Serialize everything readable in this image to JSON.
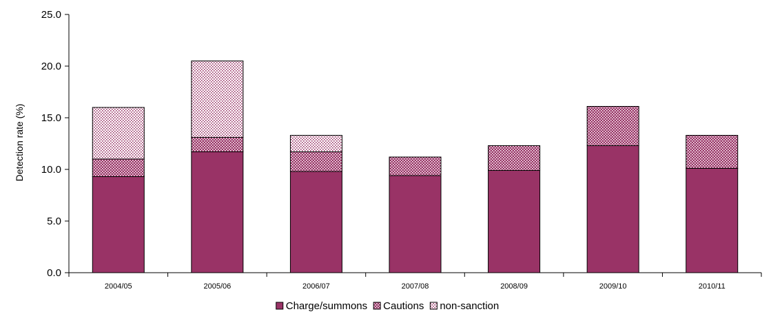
{
  "chart_data": {
    "type": "bar",
    "stacked": true,
    "title": "",
    "xlabel": "",
    "ylabel": "Detection rate (%)",
    "ylim": [
      0,
      25
    ],
    "yticks": [
      "0.0",
      "5.0",
      "10.0",
      "15.0",
      "20.0",
      "25.0"
    ],
    "categories": [
      "2004/05",
      "2005/06",
      "2006/07",
      "2007/08",
      "2008/09",
      "2009/10",
      "2010/11"
    ],
    "series": [
      {
        "name": "Charge/summons",
        "color": "#993366",
        "pattern": "solid",
        "values": [
          9.3,
          11.7,
          9.8,
          9.4,
          9.9,
          12.3,
          10.1
        ]
      },
      {
        "name": "Cautions",
        "color": "#993366",
        "pattern": "dots-dense",
        "values": [
          1.7,
          1.4,
          1.9,
          1.8,
          2.4,
          3.8,
          3.2
        ]
      },
      {
        "name": "non-sanction",
        "color": "#993366",
        "pattern": "dots-sparse",
        "values": [
          5.0,
          7.4,
          1.6,
          0.0,
          0.0,
          0.0,
          0.0
        ]
      }
    ],
    "grid": false,
    "legend_position": "bottom-center"
  }
}
